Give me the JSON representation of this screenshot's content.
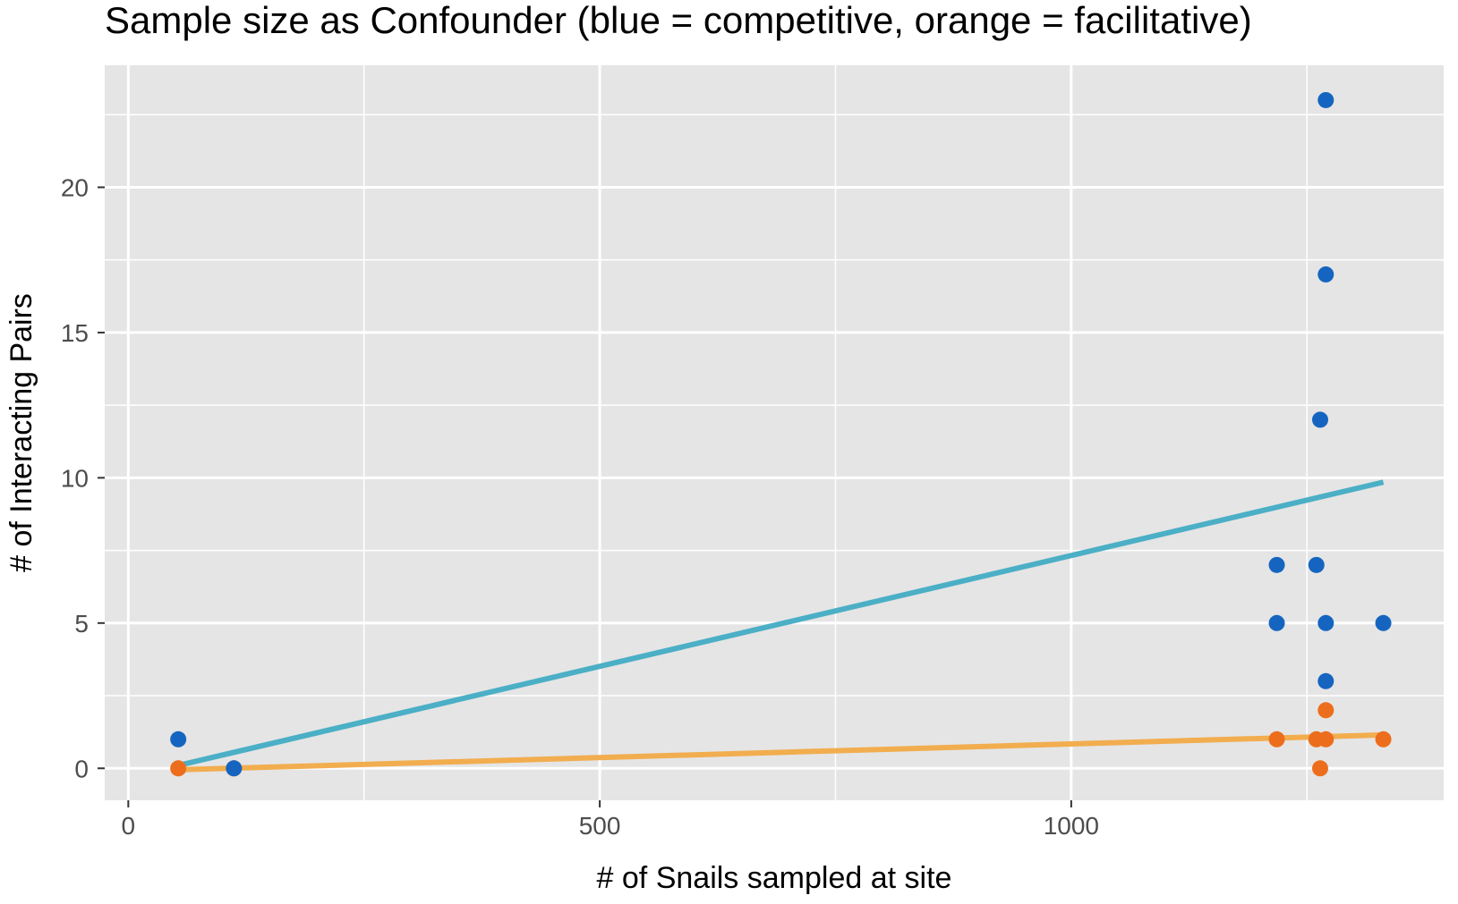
{
  "chart_data": {
    "type": "scatter",
    "title": "Sample size as Confounder  (blue = competitive, orange = facilitative)",
    "xlabel": "# of Snails sampled at site",
    "ylabel": "# of Interacting Pairs",
    "xlim": [
      -25,
      1395
    ],
    "ylim": [
      -1.1,
      24.2
    ],
    "x_major_ticks": [
      0,
      500,
      1000
    ],
    "x_minor_ticks": [
      250,
      750,
      1250
    ],
    "y_major_ticks": [
      0,
      5,
      10,
      15,
      20
    ],
    "y_minor_ticks": [
      2.5,
      7.5,
      12.5,
      17.5,
      22.5
    ],
    "x_tick_labels": [
      "0",
      "500",
      "1000"
    ],
    "y_tick_labels": [
      "0",
      "5",
      "10",
      "15",
      "20"
    ],
    "grid": true,
    "legend": "none",
    "panel_color": "#e5e5e5",
    "series": [
      {
        "color": "#1565c0",
        "points": [
          {
            "x": 53,
            "y": 1
          },
          {
            "x": 112,
            "y": 0
          },
          {
            "x": 1218,
            "y": 7
          },
          {
            "x": 1218,
            "y": 5
          },
          {
            "x": 1260,
            "y": 7
          },
          {
            "x": 1264,
            "y": 12
          },
          {
            "x": 1270,
            "y": 23
          },
          {
            "x": 1270,
            "y": 17
          },
          {
            "x": 1270,
            "y": 5
          },
          {
            "x": 1270,
            "y": 3
          },
          {
            "x": 1331,
            "y": 5
          }
        ],
        "trend": {
          "color": "#4bafc6",
          "x": [
            53,
            1331
          ],
          "y": [
            0.1,
            9.85
          ]
        }
      },
      {
        "color": "#ec6e1c",
        "points": [
          {
            "x": 53,
            "y": 0
          },
          {
            "x": 112,
            "y": 0
          },
          {
            "x": 1218,
            "y": 1
          },
          {
            "x": 1260,
            "y": 1
          },
          {
            "x": 1264,
            "y": 0
          },
          {
            "x": 1270,
            "y": 2
          },
          {
            "x": 1270,
            "y": 1
          },
          {
            "x": 1331,
            "y": 1
          }
        ],
        "trend": {
          "color": "#f2ad4e",
          "x": [
            53,
            1331
          ],
          "y": [
            -0.05,
            1.15
          ]
        }
      }
    ]
  }
}
